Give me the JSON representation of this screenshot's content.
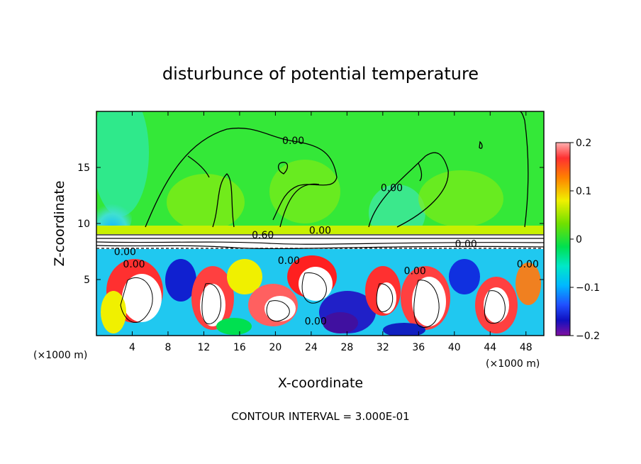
{
  "chart_data": {
    "type": "heatmap",
    "title": "disturbunce of potential temperature",
    "xlabel": "X-coordinate",
    "ylabel": "Z-coordinate",
    "x_unit_left": "(×1000 m)",
    "x_unit_right": "(×1000 m)",
    "xlim": [
      0,
      50
    ],
    "ylim": [
      0,
      20
    ],
    "x_ticks": [
      4,
      8,
      12,
      16,
      20,
      24,
      28,
      32,
      36,
      40,
      44,
      48
    ],
    "y_ticks": [
      5,
      10,
      15
    ],
    "colorbar": {
      "range": [
        -0.2,
        0.2
      ],
      "ticks": [
        "0.2",
        "0.1",
        "0",
        "−0.1",
        "−0.2"
      ],
      "tick_values": [
        0.2,
        0.1,
        0,
        -0.1,
        -0.2
      ]
    },
    "contour_labels": [
      {
        "text": "0.00",
        "x": 22,
        "z": 17.4
      },
      {
        "text": "0.00",
        "x": 33,
        "z": 13.2
      },
      {
        "text": "0.60",
        "x": 18.6,
        "z": 9.0
      },
      {
        "text": "0.00",
        "x": 25,
        "z": 9.4
      },
      {
        "text": "0.00",
        "x": 41.3,
        "z": 8.2
      },
      {
        "text": "0.00",
        "x": 3.2,
        "z": 7.5
      },
      {
        "text": "0.00",
        "x": 4.2,
        "z": 6.4
      },
      {
        "text": "0.00",
        "x": 21.5,
        "z": 6.7
      },
      {
        "text": "0.00",
        "x": 35.6,
        "z": 5.8
      },
      {
        "text": "0.00",
        "x": 24.5,
        "z": 1.3
      },
      {
        "text": "0.00",
        "x": 48.2,
        "z": 6.4
      }
    ],
    "contour_interval": "CONTOUR INTERVAL = 3.000E-01"
  }
}
